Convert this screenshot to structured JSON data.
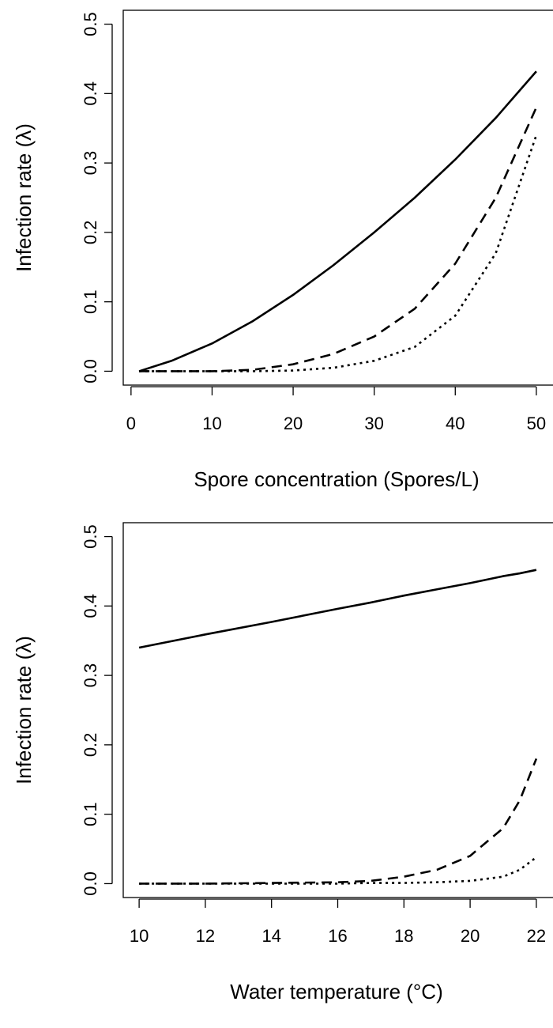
{
  "chart_data": [
    {
      "type": "line",
      "ylabel": "Infection rate (λ)",
      "xlabel": "Spore concentration (Spores/L)",
      "x": [
        1,
        5,
        10,
        15,
        20,
        25,
        30,
        35,
        40,
        45,
        50
      ],
      "series": [
        {
          "color": "#000000",
          "linestyle": "solid",
          "values": [
            0,
            0.015,
            0.04,
            0.072,
            0.11,
            0.153,
            0.2,
            0.25,
            0.305,
            0.365,
            0.432
          ]
        },
        {
          "color": "#000000",
          "linestyle": "dashed",
          "values": [
            0,
            0,
            0,
            0.002,
            0.01,
            0.025,
            0.05,
            0.09,
            0.155,
            0.25,
            0.38
          ]
        },
        {
          "color": "#000000",
          "linestyle": "dotted",
          "values": [
            0,
            0,
            0,
            0,
            0.001,
            0.005,
            0.015,
            0.035,
            0.08,
            0.17,
            0.34
          ]
        }
      ],
      "xlim": [
        -0.96,
        51.96
      ],
      "ylim": [
        -0.02,
        0.52
      ],
      "xticks": [
        0,
        10,
        20,
        30,
        40,
        50
      ],
      "yticks": [
        {
          "value": 0,
          "label": "0.0"
        },
        0.1,
        0.2,
        0.3,
        0.4,
        0.5
      ]
    },
    {
      "type": "line",
      "ylabel": "Infection rate (λ)",
      "xlabel": "Water temperature (°C)",
      "x": [
        10,
        12,
        14,
        16,
        17,
        18,
        19,
        20,
        21,
        21.5,
        22
      ],
      "series": [
        {
          "color": "#000000",
          "linestyle": "solid",
          "values": [
            0.34,
            0.359,
            0.377,
            0.396,
            0.405,
            0.415,
            0.424,
            0.433,
            0.443,
            0.447,
            0.452
          ]
        },
        {
          "color": "#000000",
          "linestyle": "dashed",
          "values": [
            0,
            0,
            0.001,
            0.002,
            0.004,
            0.01,
            0.02,
            0.04,
            0.08,
            0.12,
            0.18
          ]
        },
        {
          "color": "#000000",
          "linestyle": "dotted",
          "values": [
            0,
            0,
            0,
            0,
            0.001,
            0.001,
            0.002,
            0.004,
            0.01,
            0.02,
            0.038
          ]
        }
      ],
      "xlim": [
        9.52,
        22.48
      ],
      "ylim": [
        -0.02,
        0.52
      ],
      "xticks": [
        10,
        12,
        14,
        16,
        18,
        20,
        22
      ],
      "yticks": [
        {
          "value": 0,
          "label": "0.0"
        },
        0.1,
        0.2,
        0.3,
        0.4,
        0.5
      ]
    }
  ]
}
